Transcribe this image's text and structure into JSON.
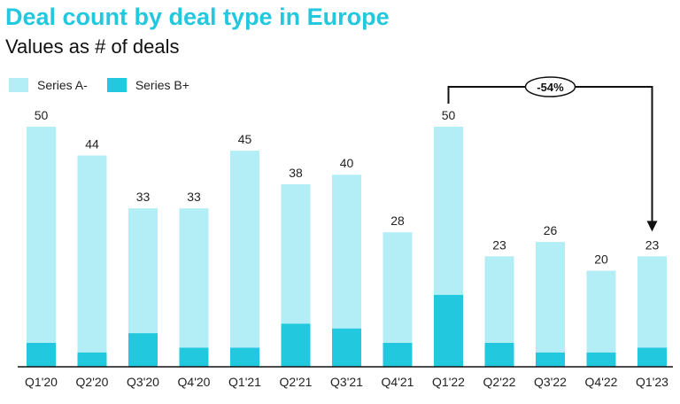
{
  "chart_data": {
    "type": "bar",
    "stacked": true,
    "title": "Deal count by deal type in Europe",
    "subtitle": "Values as # of deals",
    "categories": [
      "Q1'20",
      "Q2'20",
      "Q3'20",
      "Q4'20",
      "Q1'21",
      "Q2'21",
      "Q3'21",
      "Q4'21",
      "Q1'22",
      "Q2'22",
      "Q3'22",
      "Q4'22",
      "Q1'23"
    ],
    "series": [
      {
        "name": "Series A-",
        "color": "#b3eef6",
        "values": [
          45,
          41,
          26,
          29,
          41,
          29,
          32,
          23,
          35,
          18,
          23,
          17,
          19
        ]
      },
      {
        "name": "Series B+",
        "color": "#22c8de",
        "values": [
          5,
          3,
          7,
          4,
          4,
          9,
          8,
          5,
          15,
          5,
          3,
          3,
          4
        ]
      }
    ],
    "totals": [
      50,
      44,
      33,
      33,
      45,
      38,
      40,
      28,
      50,
      23,
      26,
      20,
      23
    ],
    "ylim": [
      0,
      55
    ],
    "legend_position": "top-left",
    "grid": false,
    "annotation": {
      "label": "-54%",
      "from": "Q1'22",
      "to": "Q1'23"
    }
  }
}
